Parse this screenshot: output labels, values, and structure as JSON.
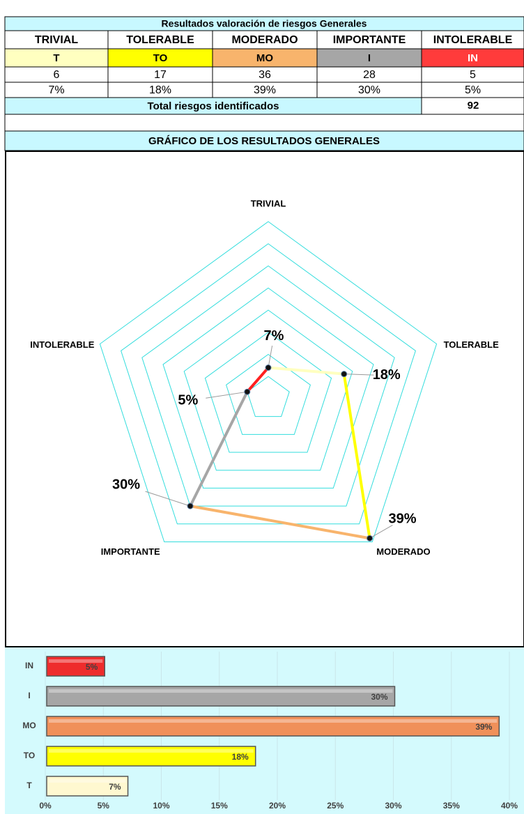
{
  "table": {
    "title": "Resultados valoración de riesgos Generales",
    "headers": [
      "TRIVIAL",
      "TOLERABLE",
      "MODERADO",
      "IMPORTANTE",
      "INTOLERABLE"
    ],
    "codes": [
      "T",
      "TO",
      "MO",
      "I",
      "IN"
    ],
    "code_colors": [
      "#ffffc0",
      "#ffff00",
      "#f8b46c",
      "#a6a6a6",
      "#ff3b3b"
    ],
    "counts": [
      6,
      17,
      36,
      28,
      5
    ],
    "percents": [
      "7%",
      "18%",
      "39%",
      "30%",
      "5%"
    ],
    "total_label": "Total riesgos identificados",
    "total": 92,
    "section_title": "GRÁFICO DE LOS RESULTADOS GENERALES"
  },
  "chart_data": [
    {
      "type": "radar",
      "categories": [
        "TRIVIAL",
        "TOLERABLE",
        "MODERADO",
        "IMPORTANTE",
        "INTOLERABLE"
      ],
      "values": [
        7,
        18,
        39,
        30,
        5
      ],
      "value_labels": [
        "7%",
        "18%",
        "39%",
        "30%",
        "5%"
      ],
      "colors": [
        "#ffffc0",
        "#ffff00",
        "#f8b46c",
        "#a6a6a6",
        "#ff2020"
      ],
      "ylim": [
        0,
        40
      ],
      "rings": [
        5,
        10,
        15,
        20,
        25,
        30,
        35,
        40
      ],
      "grid_color": "#33dddd"
    },
    {
      "type": "hbar",
      "categories": [
        "T",
        "TO",
        "MO",
        "I",
        "IN"
      ],
      "values": [
        7,
        18,
        39,
        30,
        5
      ],
      "value_labels": [
        "7%",
        "18%",
        "39%",
        "30%",
        "5%"
      ],
      "colors": [
        "#fff8d0",
        "#ffff00",
        "#f0905a",
        "#a6a6a6",
        "#ee2c2c"
      ],
      "xlim": [
        0,
        40
      ],
      "xticks": [
        {
          "value": 0,
          "label": "0%"
        },
        {
          "value": 5,
          "label": "5%"
        },
        {
          "value": 10,
          "label": "10%"
        },
        {
          "value": 15,
          "label": "15%"
        },
        {
          "value": 20,
          "label": "20%"
        },
        {
          "value": 25,
          "label": "25%"
        },
        {
          "value": 30,
          "label": "30%"
        },
        {
          "value": 35,
          "label": "35%"
        },
        {
          "value": 40,
          "label": "40%"
        }
      ],
      "grid": true
    }
  ]
}
